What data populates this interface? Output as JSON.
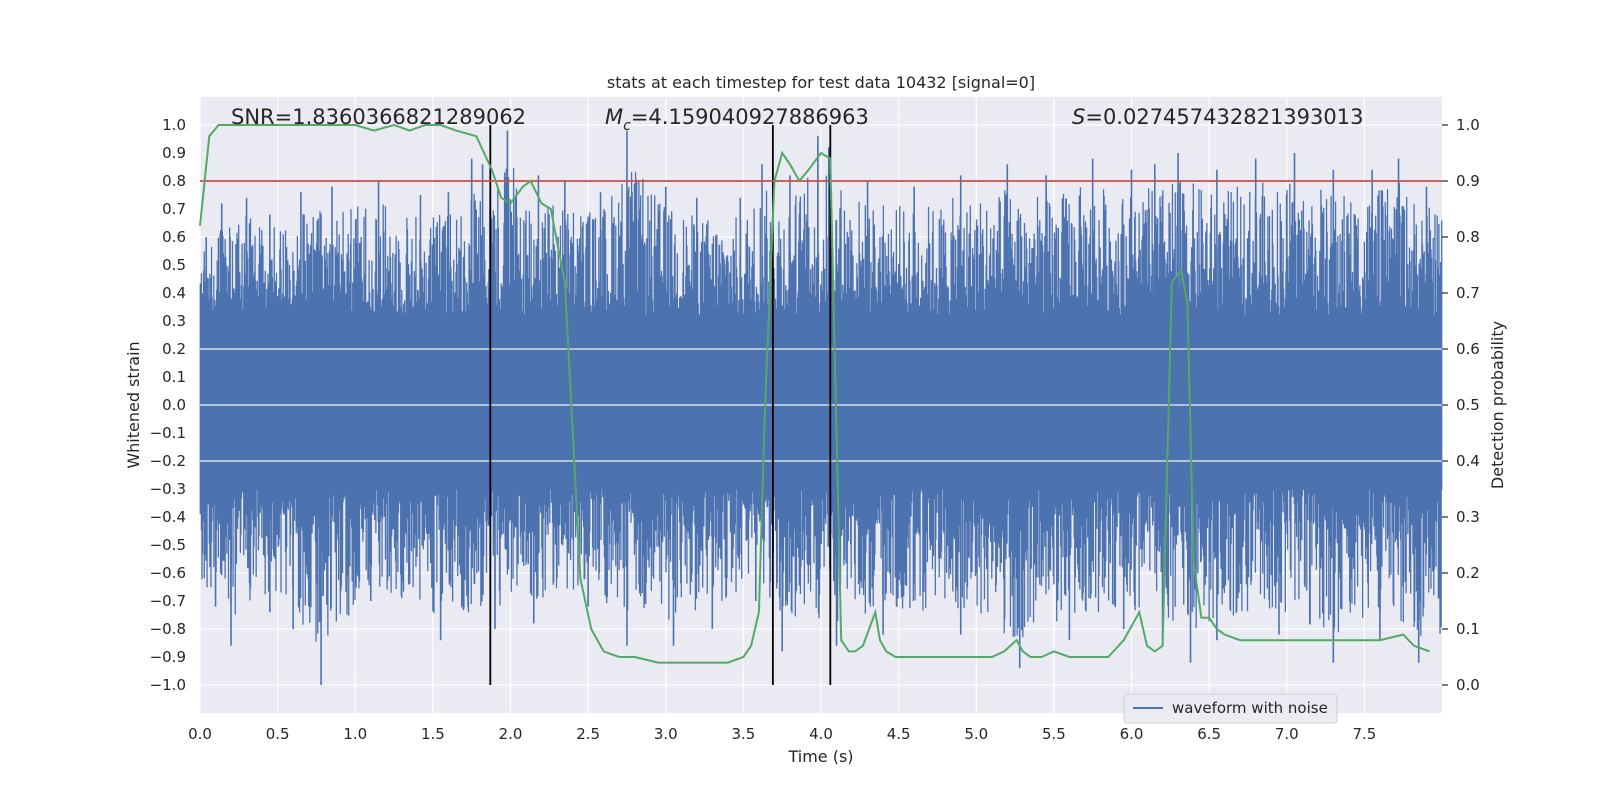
{
  "chart_data": {
    "type": "line",
    "title": "stats at each timestep for test data 10432 [signal=0]",
    "xlabel": "Time (s)",
    "ylabel_left": "Whitened strain",
    "ylabel_right": "Detection probability",
    "xlim": [
      0,
      8
    ],
    "ylim_left": [
      -1.1,
      1.1
    ],
    "ylim_right": [
      -0.05,
      1.05
    ],
    "x_ticks": [
      "0.0",
      "0.5",
      "1.0",
      "1.5",
      "2.0",
      "2.5",
      "3.0",
      "3.5",
      "4.0",
      "4.5",
      "5.0",
      "5.5",
      "6.0",
      "6.5",
      "7.0",
      "7.5"
    ],
    "y_left_ticks": [
      "1.0",
      "0.9",
      "0.8",
      "0.7",
      "0.6",
      "0.5",
      "0.4",
      "0.3",
      "0.2",
      "0.1",
      "0.0",
      "−0.1",
      "−0.2",
      "−0.3",
      "−0.4",
      "−0.5",
      "−0.6",
      "−0.7",
      "−0.8",
      "−0.9",
      "−1.0"
    ],
    "y_right_ticks": [
      "1.0",
      "0.9",
      "0.8",
      "0.7",
      "0.6",
      "0.5",
      "0.4",
      "0.3",
      "0.2",
      "0.1",
      "0.0"
    ],
    "annotations": {
      "snr_label": "SNR=1.8360366821289062",
      "mc_symbol": "M",
      "mc_sub": "c",
      "mc_value": "=4.159040927886963",
      "s_symbol": "S",
      "s_value": "=0.027457432821393013"
    },
    "legend": {
      "label": "waveform with noise",
      "loc": "lower right"
    },
    "threshold_line": {
      "y_right": 0.9,
      "color": "#c44e52"
    },
    "vertical_lines_x": [
      1.87,
      3.69,
      4.06
    ],
    "waveform": {
      "name": "waveform with noise",
      "color": "#4c72b0",
      "approx_range": [
        -1.0,
        1.0
      ],
      "peaks_upper": [
        [
          0.04,
          0.6
        ],
        [
          0.14,
          0.72
        ],
        [
          0.3,
          0.74
        ],
        [
          0.45,
          0.68
        ],
        [
          0.65,
          0.76
        ],
        [
          0.85,
          0.78
        ],
        [
          1.15,
          0.8
        ],
        [
          1.42,
          0.75
        ],
        [
          1.6,
          0.76
        ],
        [
          1.75,
          0.88
        ],
        [
          1.82,
          0.86
        ],
        [
          1.98,
          0.98
        ],
        [
          2.18,
          0.82
        ],
        [
          2.35,
          0.8
        ],
        [
          2.58,
          0.76
        ],
        [
          2.75,
          0.98
        ],
        [
          3.0,
          0.78
        ],
        [
          3.2,
          0.74
        ],
        [
          3.48,
          0.74
        ],
        [
          3.62,
          0.86
        ],
        [
          3.8,
          0.82
        ],
        [
          3.98,
          0.96
        ],
        [
          4.05,
          0.92
        ],
        [
          4.3,
          0.8
        ],
        [
          4.6,
          0.78
        ],
        [
          4.9,
          0.82
        ],
        [
          5.2,
          0.86
        ],
        [
          5.45,
          0.82
        ],
        [
          5.75,
          0.88
        ],
        [
          6.0,
          0.84
        ],
        [
          6.15,
          0.86
        ],
        [
          6.3,
          0.9
        ],
        [
          6.55,
          0.84
        ],
        [
          6.8,
          0.88
        ],
        [
          7.05,
          0.9
        ],
        [
          7.3,
          0.84
        ],
        [
          7.55,
          0.84
        ],
        [
          7.72,
          0.88
        ],
        [
          7.9,
          0.78
        ]
      ],
      "peaks_lower": [
        [
          0.1,
          -0.72
        ],
        [
          0.2,
          -0.86
        ],
        [
          0.45,
          -0.74
        ],
        [
          0.6,
          -0.8
        ],
        [
          0.78,
          -1.0
        ],
        [
          1.1,
          -0.7
        ],
        [
          1.55,
          -0.84
        ],
        [
          1.9,
          -0.8
        ],
        [
          2.15,
          -0.78
        ],
        [
          2.5,
          -0.72
        ],
        [
          2.75,
          -0.86
        ],
        [
          3.05,
          -0.86
        ],
        [
          3.3,
          -0.8
        ],
        [
          3.58,
          -0.7
        ],
        [
          3.75,
          -0.88
        ],
        [
          4.1,
          -0.86
        ],
        [
          4.4,
          -0.82
        ],
        [
          4.9,
          -0.82
        ],
        [
          5.28,
          -0.94
        ],
        [
          5.6,
          -0.84
        ],
        [
          5.95,
          -0.8
        ],
        [
          6.2,
          -0.84
        ],
        [
          6.38,
          -0.92
        ],
        [
          6.55,
          -0.84
        ],
        [
          6.95,
          -0.82
        ],
        [
          7.3,
          -0.92
        ],
        [
          7.6,
          -0.84
        ],
        [
          7.85,
          -0.92
        ]
      ]
    },
    "detection_probability": {
      "color": "#55a868",
      "x": [
        0.0,
        0.06,
        0.12,
        0.2,
        0.4,
        0.6,
        0.8,
        1.0,
        1.12,
        1.25,
        1.35,
        1.45,
        1.55,
        1.65,
        1.78,
        1.83,
        1.88,
        1.94,
        2.0,
        2.08,
        2.13,
        2.2,
        2.26,
        2.3,
        2.35,
        2.45,
        2.52,
        2.6,
        2.7,
        2.8,
        2.95,
        3.05,
        3.2,
        3.4,
        3.5,
        3.55,
        3.6,
        3.64,
        3.7,
        3.75,
        3.8,
        3.86,
        3.92,
        4.0,
        4.06,
        4.13,
        4.18,
        4.22,
        4.27,
        4.35,
        4.38,
        4.42,
        4.48,
        4.6,
        4.7,
        4.8,
        4.85,
        4.9,
        5.0,
        5.1,
        5.18,
        5.22,
        5.26,
        5.3,
        5.35,
        5.42,
        5.5,
        5.6,
        5.7,
        5.85,
        5.95,
        6.05,
        6.1,
        6.15,
        6.2,
        6.26,
        6.32,
        6.36,
        6.4,
        6.45,
        6.5,
        6.55,
        6.6,
        6.7,
        6.8,
        7.0,
        7.2,
        7.4,
        7.6,
        7.75,
        7.82,
        7.92
      ],
      "y": [
        0.82,
        0.98,
        1.0,
        1.0,
        1.0,
        1.0,
        1.0,
        1.0,
        0.99,
        1.0,
        0.99,
        1.0,
        1.0,
        0.99,
        0.98,
        0.95,
        0.92,
        0.87,
        0.86,
        0.89,
        0.9,
        0.86,
        0.85,
        0.79,
        0.72,
        0.19,
        0.1,
        0.06,
        0.05,
        0.05,
        0.04,
        0.04,
        0.04,
        0.04,
        0.05,
        0.07,
        0.13,
        0.5,
        0.9,
        0.95,
        0.93,
        0.9,
        0.92,
        0.95,
        0.94,
        0.08,
        0.06,
        0.06,
        0.07,
        0.13,
        0.08,
        0.06,
        0.05,
        0.05,
        0.05,
        0.05,
        0.05,
        0.05,
        0.05,
        0.05,
        0.06,
        0.07,
        0.08,
        0.06,
        0.05,
        0.05,
        0.06,
        0.05,
        0.05,
        0.05,
        0.08,
        0.13,
        0.07,
        0.06,
        0.07,
        0.72,
        0.74,
        0.68,
        0.22,
        0.12,
        0.12,
        0.1,
        0.09,
        0.08,
        0.08,
        0.08,
        0.08,
        0.08,
        0.08,
        0.09,
        0.07,
        0.06
      ]
    }
  }
}
